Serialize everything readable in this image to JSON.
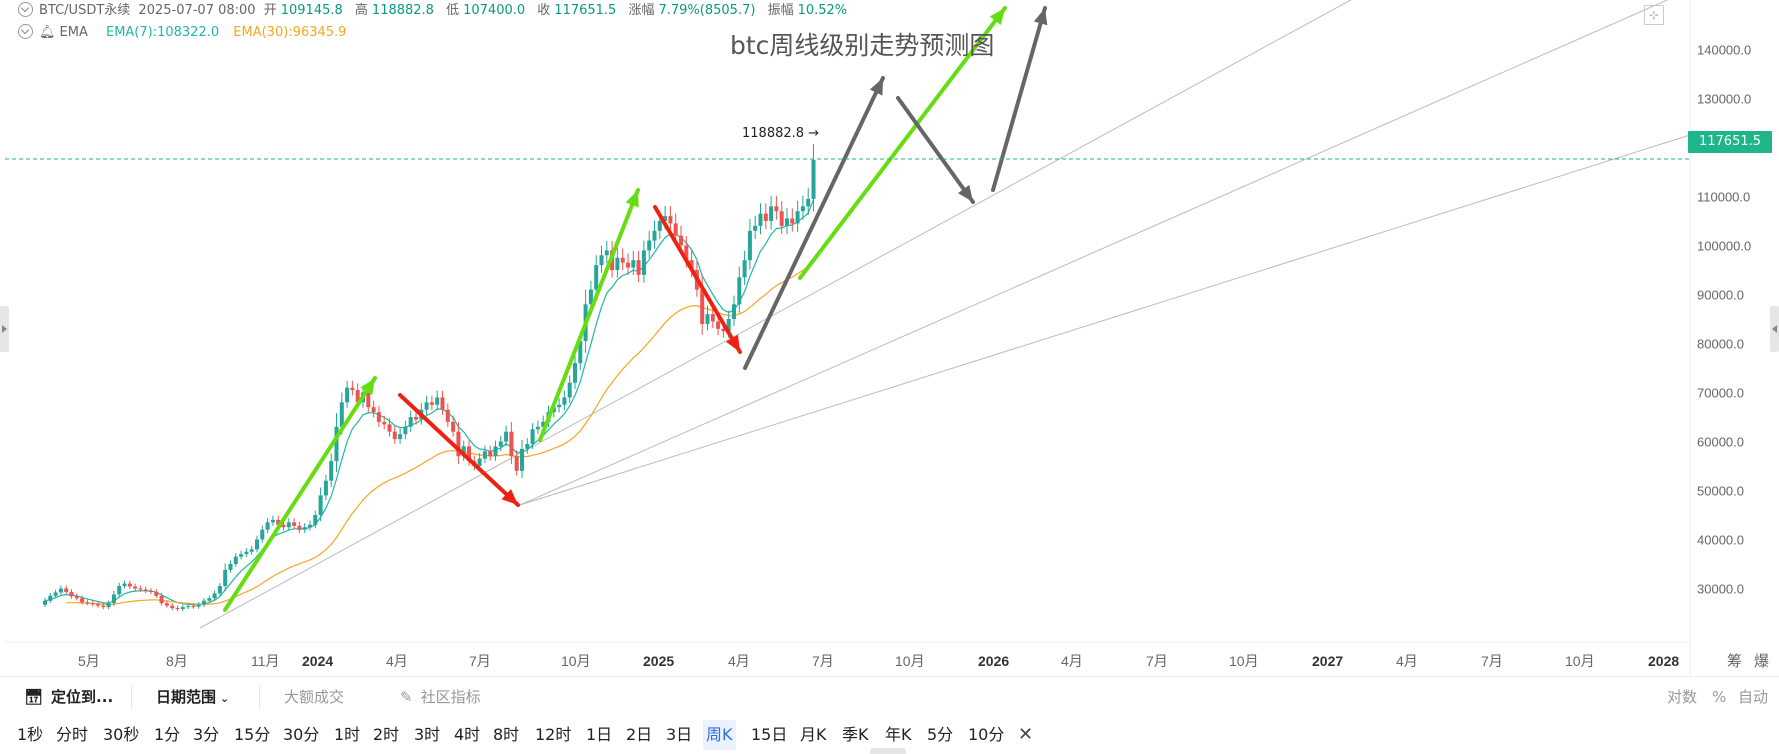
{
  "legend": {
    "symbol": "BTC/USDT永续",
    "datetime": "2025-07-07 08:00",
    "open_label": "开",
    "open": "109145.8",
    "high_label": "高",
    "high": "118882.8",
    "low_label": "低",
    "low": "107400.0",
    "close_label": "收",
    "close": "117651.5",
    "change_label": "涨幅",
    "change": "7.79%(8505.7)",
    "amp_label": "振幅",
    "amp": "10.52%",
    "indicator": "EMA",
    "ema7": "EMA(7):108322.0",
    "ema30": "EMA(30):96345.9"
  },
  "annotation": {
    "title": "btc周线级别走势预测图"
  },
  "current_price": "117651.5",
  "high_marker": "118882.8 →",
  "colors": {
    "up": "#26a69a",
    "down": "#ef5350",
    "ema7": "#20b8a6",
    "ema30": "#f5a623",
    "green_arrow": "#66dd11",
    "red_arrow": "#ee2211",
    "gray_arrow": "#666666",
    "price_line": "#1fb58b",
    "active_tf": "#2e6fe0"
  },
  "chart_data": {
    "type": "candlestick",
    "y_axis": {
      "min": 25000,
      "max": 145000,
      "ticks": [
        "30000.0",
        "40000.0",
        "50000.0",
        "60000.0",
        "70000.0",
        "80000.0",
        "90000.0",
        "100000.0",
        "110000.0",
        "120000.0",
        "130000.0",
        "140000.0"
      ]
    },
    "x_axis": {
      "ticks": [
        {
          "label": "5月",
          "bold": false
        },
        {
          "label": "8月",
          "bold": false
        },
        {
          "label": "11月",
          "bold": false
        },
        {
          "label": "2024",
          "bold": true
        },
        {
          "label": "4月",
          "bold": false
        },
        {
          "label": "7月",
          "bold": false
        },
        {
          "label": "10月",
          "bold": false
        },
        {
          "label": "2025",
          "bold": true
        },
        {
          "label": "4月",
          "bold": false
        },
        {
          "label": "7月",
          "bold": false
        },
        {
          "label": "10月",
          "bold": false
        },
        {
          "label": "2026",
          "bold": true
        },
        {
          "label": "4月",
          "bold": false
        },
        {
          "label": "7月",
          "bold": false
        },
        {
          "label": "10月",
          "bold": false
        },
        {
          "label": "2027",
          "bold": true
        },
        {
          "label": "4月",
          "bold": false
        },
        {
          "label": "7月",
          "bold": false
        },
        {
          "label": "10月",
          "bold": false
        },
        {
          "label": "2028",
          "bold": true
        }
      ],
      "right_labels": [
        "筹",
        "爆"
      ]
    },
    "series_close": [
      27500,
      28500,
      29200,
      30000,
      29300,
      28400,
      28000,
      27200,
      27000,
      26800,
      26500,
      26200,
      27000,
      28800,
      30500,
      31000,
      30400,
      30000,
      29800,
      29500,
      29300,
      28500,
      27000,
      26500,
      26000,
      25800,
      26200,
      26400,
      26300,
      26700,
      27500,
      28000,
      29000,
      30500,
      33800,
      35000,
      36500,
      37000,
      37500,
      38000,
      40000,
      42000,
      43500,
      44000,
      43000,
      42500,
      43500,
      42800,
      42000,
      42500,
      43000,
      45000,
      49000,
      52000,
      56000,
      63000,
      68000,
      71000,
      70500,
      68000,
      70000,
      67000,
      66000,
      64000,
      63500,
      62000,
      60500,
      61500,
      63000,
      65000,
      64500,
      66500,
      68000,
      67500,
      69000,
      66500,
      64000,
      62000,
      57000,
      59000,
      56000,
      55000,
      56500,
      58000,
      57000,
      59000,
      60000,
      62000,
      57000,
      54000,
      58500,
      59500,
      62500,
      63000,
      64000,
      66000,
      67000,
      67500,
      69000,
      72000,
      76000,
      80500,
      88000,
      91000,
      96000,
      98000,
      99000,
      95000,
      97500,
      96500,
      95500,
      97000,
      94000,
      99000,
      101000,
      103000,
      105000,
      106000,
      104500,
      102000,
      100000,
      97000,
      95000,
      91000,
      84000,
      86000,
      84500,
      83000,
      82500,
      85000,
      88000,
      93500,
      97000,
      103000,
      104000,
      106500,
      105000,
      108000,
      107000,
      104000,
      105500,
      104500,
      107000,
      108000,
      109500,
      117500
    ],
    "green_arrows": [
      [
        [
          2010,
          24
        ],
        [
          2070,
          82
        ]
      ],
      [
        [
          2110,
          59
        ],
        [
          2190,
          82
        ]
      ],
      [
        [
          2080,
          26
        ],
        [
          2410,
          138
        ]
      ]
    ],
    "red_arrows": [
      [
        [
          2055,
          72
        ],
        [
          2115,
          51
        ]
      ],
      [
        [
          2180,
          82
        ],
        [
          2210,
          78
        ]
      ]
    ],
    "gray_arrows": [
      [
        [
          2290,
          75
        ],
        [
          2410,
          128
        ]
      ],
      [
        [
          2410,
          128
        ],
        [
          2440,
          93
        ]
      ],
      [
        [
          2450,
          104
        ],
        [
          2480,
          145
        ]
      ]
    ]
  },
  "toolbar": {
    "locate": "定位到...",
    "date_range": "日期范围",
    "big_volume": "大额成交",
    "community": "社区指标",
    "log": "对数",
    "percent": "%",
    "auto": "自动"
  },
  "timeframes": [
    "1秒",
    "分时",
    "30秒",
    "1分",
    "3分",
    "15分",
    "30分",
    "1时",
    "2时",
    "3时",
    "4时",
    "8时",
    "12时",
    "1日",
    "2日",
    "3日",
    "周K",
    "15日",
    "月K",
    "季K",
    "年K",
    "5分",
    "10分"
  ],
  "active_timeframe": "周K"
}
